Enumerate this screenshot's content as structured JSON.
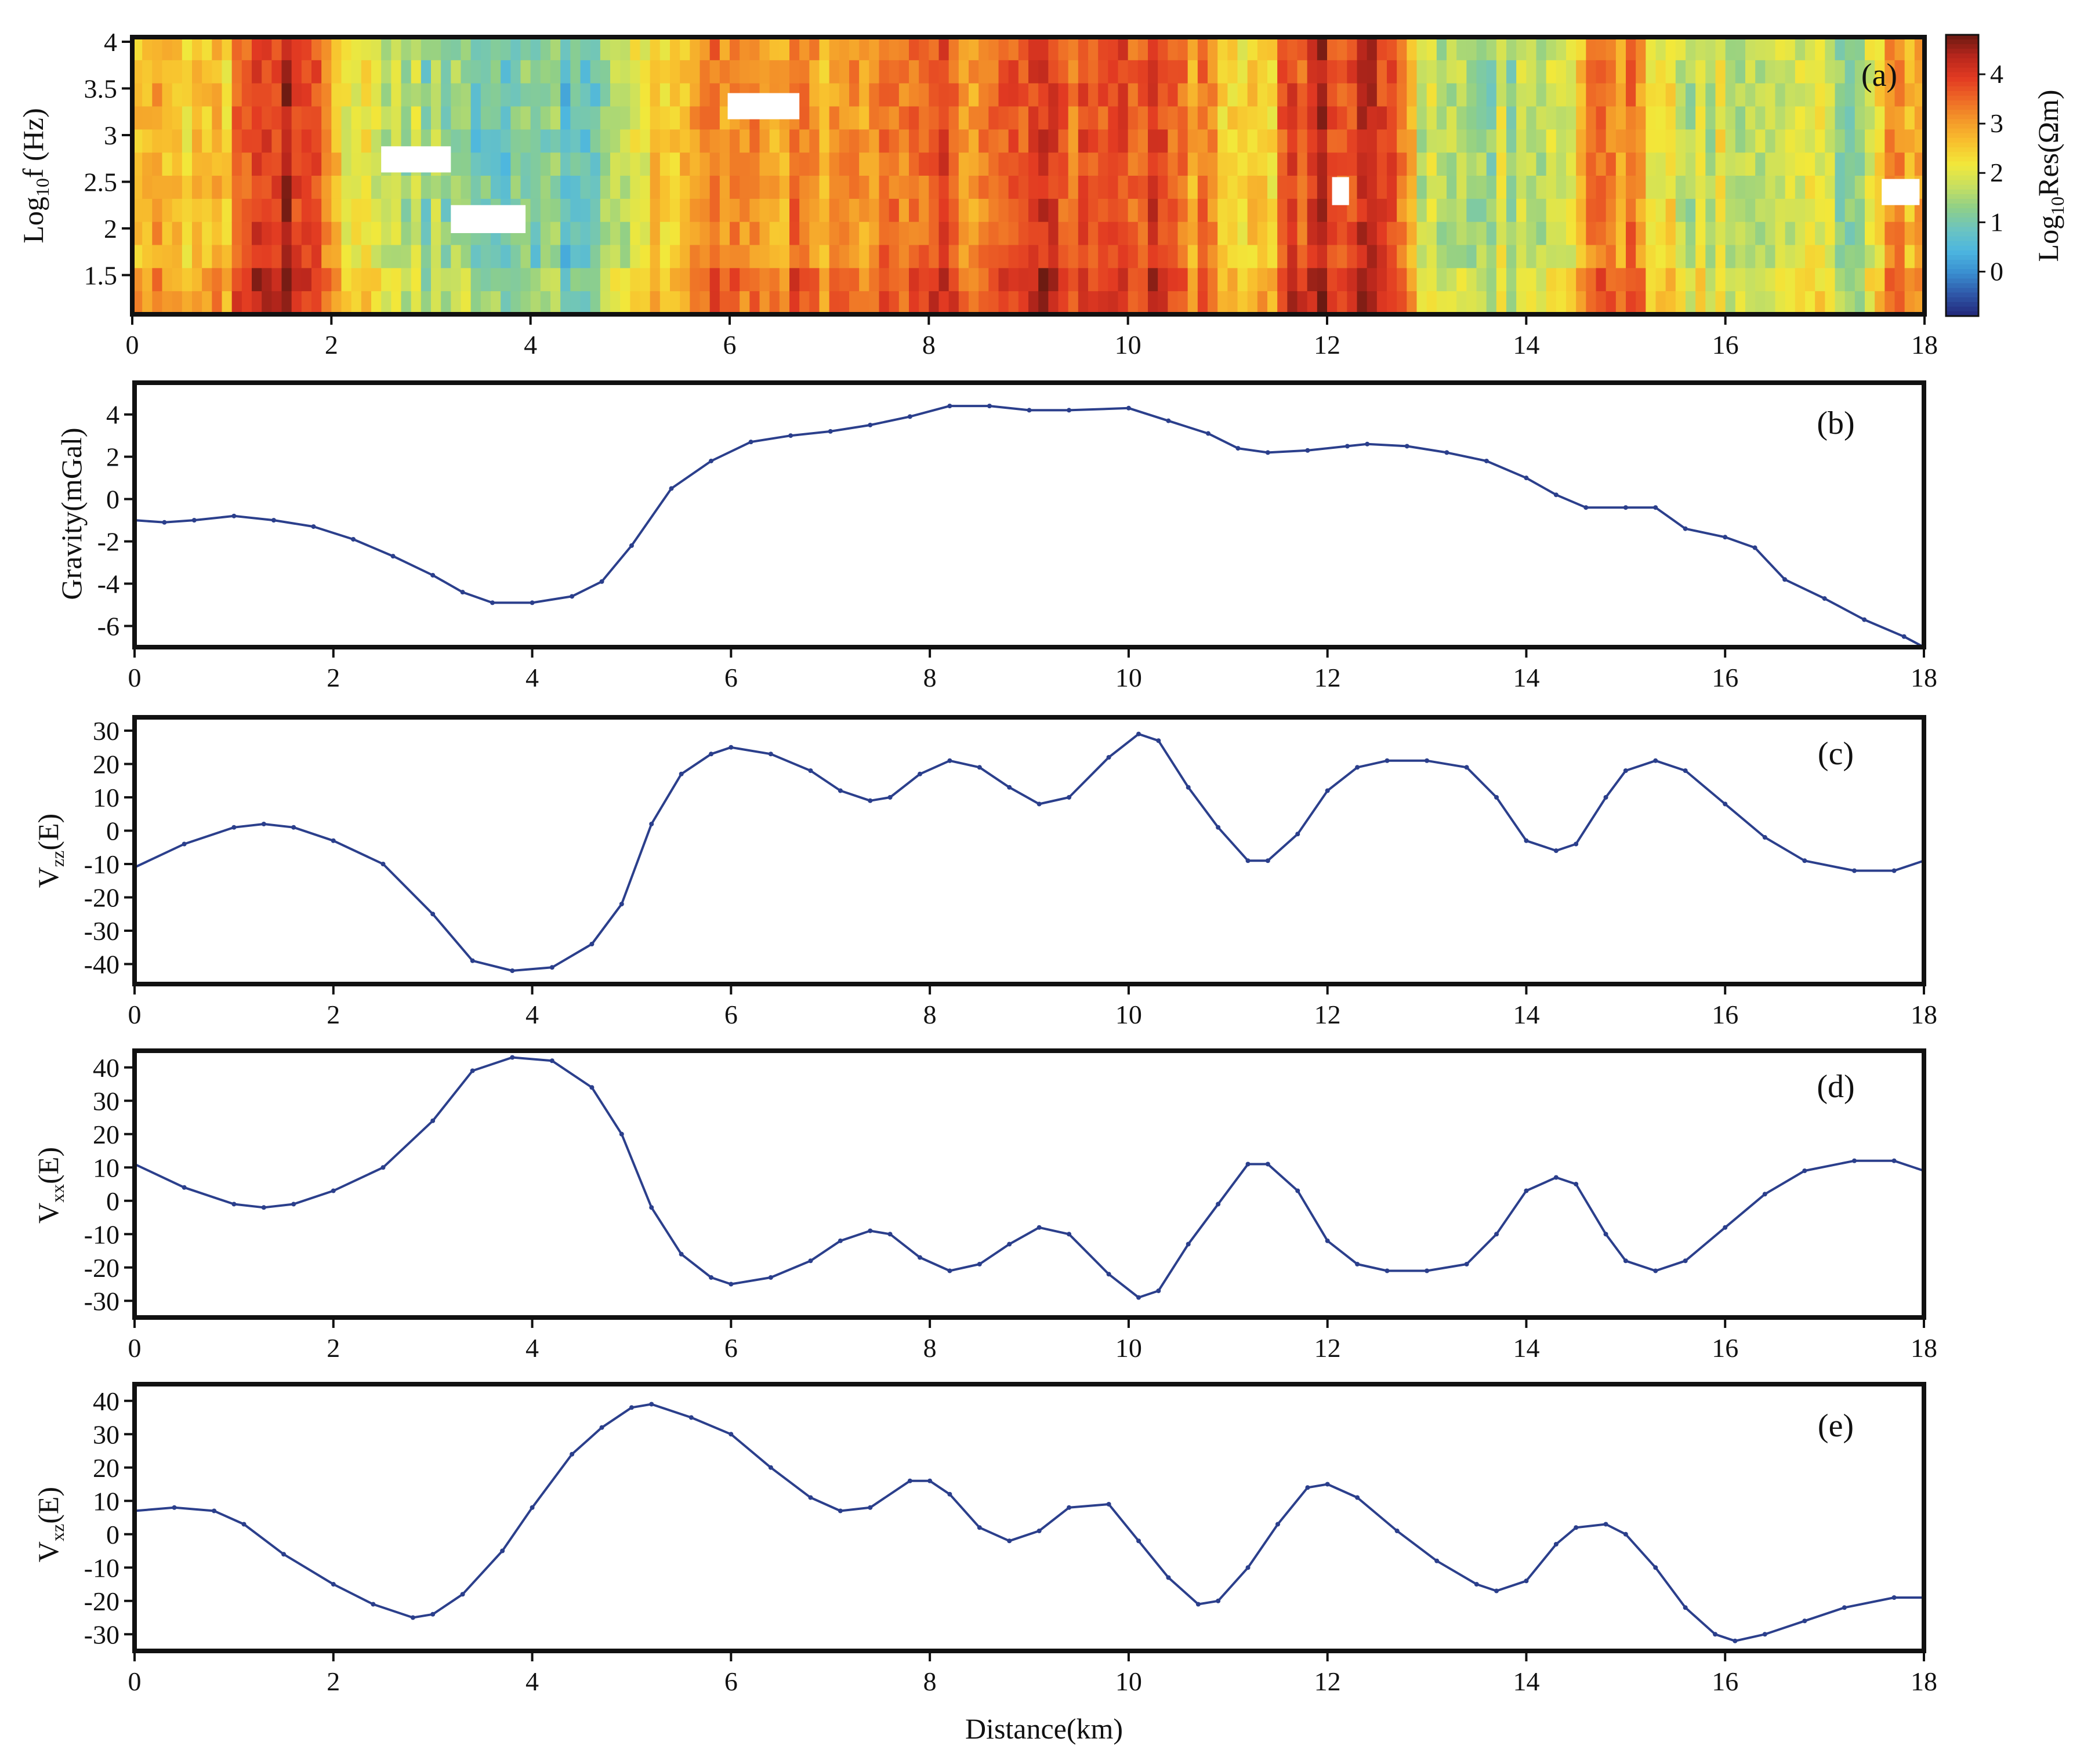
{
  "chart_data": [
    {
      "id": "a",
      "type": "heatmap",
      "panel_label": "(a)",
      "ylabel": "Log10f (Hz)",
      "colorbar_label": "Log10Res(Ωm)",
      "xlim": [
        0,
        18
      ],
      "ylim": [
        1.08,
        4.05
      ],
      "x_ticks": [
        0,
        2,
        4,
        6,
        8,
        10,
        12,
        14,
        16,
        18
      ],
      "y_ticks": [
        1.5,
        2,
        2.5,
        3,
        3.5,
        4
      ],
      "y_tick_labels": [
        "1.5",
        "2",
        "2.5",
        "3",
        "3.5",
        "4"
      ],
      "colorbar_ticks": [
        0,
        1,
        2,
        3,
        4
      ],
      "colorbar_range": [
        -0.9,
        4.8
      ],
      "colormap": [
        "#23287a",
        "#2f57a8",
        "#3a8fd0",
        "#4cb6e0",
        "#6cc4c0",
        "#8fcf88",
        "#c8e060",
        "#f2e83a",
        "#f8c22e",
        "#f49a2a",
        "#ee6a26",
        "#e23a22",
        "#b8261c",
        "#6a1a12"
      ],
      "profile_x": [
        0,
        0.3,
        0.6,
        0.9,
        1.2,
        1.5,
        1.8,
        2.1,
        2.4,
        2.7,
        3.0,
        3.3,
        3.6,
        3.9,
        4.2,
        4.5,
        4.8,
        5.1,
        5.4,
        5.7,
        6.0,
        6.3,
        6.6,
        6.9,
        7.2,
        7.5,
        7.8,
        8.1,
        8.4,
        8.7,
        9.0,
        9.3,
        9.6,
        9.9,
        10.2,
        10.5,
        10.8,
        11.1,
        11.4,
        11.7,
        12.0,
        12.3,
        12.6,
        12.9,
        13.2,
        13.5,
        13.8,
        14.1,
        14.4,
        14.7,
        15.0,
        15.3,
        15.6,
        15.9,
        16.2,
        16.5,
        16.8,
        17.1,
        17.4,
        17.7,
        18.0
      ],
      "profile_log_res": [
        3.1,
        2.8,
        2.3,
        2.6,
        3.9,
        4.3,
        3.8,
        2.4,
        2.0,
        1.8,
        1.4,
        1.1,
        0.9,
        1.0,
        1.2,
        0.5,
        1.6,
        2.4,
        2.2,
        3.0,
        3.2,
        3.0,
        3.3,
        2.9,
        3.4,
        3.3,
        3.1,
        3.8,
        3.2,
        3.4,
        3.7,
        3.8,
        3.5,
        3.6,
        3.9,
        3.3,
        2.9,
        2.6,
        2.3,
        3.9,
        4.0,
        3.8,
        3.7,
        2.1,
        1.9,
        1.7,
        1.6,
        1.8,
        1.9,
        3.1,
        3.3,
        2.0,
        1.9,
        1.8,
        1.7,
        1.9,
        1.7,
        1.6,
        1.5,
        3.0,
        2.9
      ],
      "masked_cells": [
        {
          "x0": 2.5,
          "x1": 3.2,
          "y0": 2.6,
          "y1": 2.88
        },
        {
          "x0": 3.2,
          "x1": 3.95,
          "y0": 1.95,
          "y1": 2.25
        },
        {
          "x0": 5.98,
          "x1": 6.7,
          "y0": 3.17,
          "y1": 3.45
        },
        {
          "x0": 12.05,
          "x1": 12.22,
          "y0": 2.25,
          "y1": 2.55
        },
        {
          "x0": 17.57,
          "x1": 17.95,
          "y0": 2.25,
          "y1": 2.53
        }
      ]
    },
    {
      "id": "b",
      "type": "line",
      "panel_label": "(b)",
      "ylabel": "Gravity(mGal)",
      "xlim": [
        0,
        18
      ],
      "ylim": [
        -7,
        5.5
      ],
      "x_ticks": [
        0,
        2,
        4,
        6,
        8,
        10,
        12,
        14,
        16,
        18
      ],
      "y_ticks": [
        -6,
        -4,
        -2,
        0,
        2,
        4
      ],
      "x": [
        0,
        0.3,
        0.6,
        1.0,
        1.4,
        1.8,
        2.2,
        2.6,
        3.0,
        3.3,
        3.6,
        4.0,
        4.4,
        4.7,
        5.0,
        5.4,
        5.8,
        6.2,
        6.6,
        7.0,
        7.4,
        7.8,
        8.2,
        8.6,
        9.0,
        9.4,
        10.0,
        10.4,
        10.8,
        11.1,
        11.4,
        11.8,
        12.2,
        12.4,
        12.8,
        13.2,
        13.6,
        14.0,
        14.3,
        14.6,
        15.0,
        15.3,
        15.6,
        16.0,
        16.3,
        16.6,
        17.0,
        17.4,
        17.8,
        18.0
      ],
      "y": [
        -1.0,
        -1.1,
        -1.0,
        -0.8,
        -1.0,
        -1.3,
        -1.9,
        -2.7,
        -3.6,
        -4.4,
        -4.9,
        -4.9,
        -4.6,
        -3.9,
        -2.2,
        0.5,
        1.8,
        2.7,
        3.0,
        3.2,
        3.5,
        3.9,
        4.4,
        4.4,
        4.2,
        4.2,
        4.3,
        3.7,
        3.1,
        2.4,
        2.2,
        2.3,
        2.5,
        2.6,
        2.5,
        2.2,
        1.8,
        1.0,
        0.2,
        -0.4,
        -0.4,
        -0.4,
        -1.4,
        -1.8,
        -2.3,
        -3.8,
        -4.7,
        -5.7,
        -6.5,
        -7.0
      ],
      "color": "#2b3f8c"
    },
    {
      "id": "c",
      "type": "line",
      "panel_label": "(c)",
      "ylabel": "Vzz(E)",
      "xlim": [
        0,
        18
      ],
      "ylim": [
        -46,
        34
      ],
      "x_ticks": [
        0,
        2,
        4,
        6,
        8,
        10,
        12,
        14,
        16,
        18
      ],
      "y_ticks": [
        -40,
        -30,
        -20,
        -10,
        0,
        10,
        20,
        30
      ],
      "x": [
        0,
        0.5,
        1.0,
        1.3,
        1.6,
        2.0,
        2.5,
        3.0,
        3.4,
        3.8,
        4.2,
        4.6,
        4.9,
        5.2,
        5.5,
        5.8,
        6.0,
        6.4,
        6.8,
        7.1,
        7.4,
        7.6,
        7.9,
        8.2,
        8.5,
        8.8,
        9.1,
        9.4,
        9.8,
        10.1,
        10.3,
        10.6,
        10.9,
        11.2,
        11.4,
        11.7,
        12.0,
        12.3,
        12.6,
        13.0,
        13.4,
        13.7,
        14.0,
        14.3,
        14.5,
        14.8,
        15.0,
        15.3,
        15.6,
        16.0,
        16.4,
        16.8,
        17.3,
        17.7,
        18.0
      ],
      "y": [
        -11,
        -4,
        1,
        2,
        1,
        -3,
        -10,
        -25,
        -39,
        -42,
        -41,
        -34,
        -22,
        2,
        17,
        23,
        25,
        23,
        18,
        12,
        9,
        10,
        17,
        21,
        19,
        13,
        8,
        10,
        22,
        29,
        27,
        13,
        1,
        -9,
        -9,
        -1,
        12,
        19,
        21,
        21,
        19,
        10,
        -3,
        -6,
        -4,
        10,
        18,
        21,
        18,
        8,
        -2,
        -9,
        -12,
        -12,
        -9
      ],
      "color": "#2b3f8c"
    },
    {
      "id": "d",
      "type": "line",
      "panel_label": "(d)",
      "ylabel": "Vxx(E)",
      "xlim": [
        0,
        18
      ],
      "ylim": [
        -35,
        45
      ],
      "x_ticks": [
        0,
        2,
        4,
        6,
        8,
        10,
        12,
        14,
        16,
        18
      ],
      "y_ticks": [
        -30,
        -20,
        -10,
        0,
        10,
        20,
        30,
        40
      ],
      "x": [
        0,
        0.5,
        1.0,
        1.3,
        1.6,
        2.0,
        2.5,
        3.0,
        3.4,
        3.8,
        4.2,
        4.6,
        4.9,
        5.2,
        5.5,
        5.8,
        6.0,
        6.4,
        6.8,
        7.1,
        7.4,
        7.6,
        7.9,
        8.2,
        8.5,
        8.8,
        9.1,
        9.4,
        9.8,
        10.1,
        10.3,
        10.6,
        10.9,
        11.2,
        11.4,
        11.7,
        12.0,
        12.3,
        12.6,
        13.0,
        13.4,
        13.7,
        14.0,
        14.3,
        14.5,
        14.8,
        15.0,
        15.3,
        15.6,
        16.0,
        16.4,
        16.8,
        17.3,
        17.7,
        18.0
      ],
      "y": [
        11,
        4,
        -1,
        -2,
        -1,
        3,
        10,
        24,
        39,
        43,
        42,
        34,
        20,
        -2,
        -16,
        -23,
        -25,
        -23,
        -18,
        -12,
        -9,
        -10,
        -17,
        -21,
        -19,
        -13,
        -8,
        -10,
        -22,
        -29,
        -27,
        -13,
        -1,
        11,
        11,
        3,
        -12,
        -19,
        -21,
        -21,
        -19,
        -10,
        3,
        7,
        5,
        -10,
        -18,
        -21,
        -18,
        -8,
        2,
        9,
        12,
        12,
        9
      ],
      "color": "#2b3f8c"
    },
    {
      "id": "e",
      "type": "line",
      "panel_label": "(e)",
      "ylabel": "Vxz(E)",
      "xlabel": "Distance(km)",
      "xlim": [
        0,
        18
      ],
      "ylim": [
        -35,
        45
      ],
      "x_ticks": [
        0,
        2,
        4,
        6,
        8,
        10,
        12,
        14,
        16,
        18
      ],
      "y_ticks": [
        -30,
        -20,
        -10,
        0,
        10,
        20,
        30,
        40
      ],
      "x": [
        0,
        0.4,
        0.8,
        1.1,
        1.5,
        2.0,
        2.4,
        2.8,
        3.0,
        3.3,
        3.7,
        4.0,
        4.4,
        4.7,
        5.0,
        5.2,
        5.6,
        6.0,
        6.4,
        6.8,
        7.1,
        7.4,
        7.8,
        8.0,
        8.2,
        8.5,
        8.8,
        9.1,
        9.4,
        9.8,
        10.1,
        10.4,
        10.7,
        10.9,
        11.2,
        11.5,
        11.8,
        12.0,
        12.3,
        12.7,
        13.1,
        13.5,
        13.7,
        14.0,
        14.3,
        14.5,
        14.8,
        15.0,
        15.3,
        15.6,
        15.9,
        16.1,
        16.4,
        16.8,
        17.2,
        17.7,
        18.0
      ],
      "y": [
        7,
        8,
        7,
        3,
        -6,
        -15,
        -21,
        -25,
        -24,
        -18,
        -5,
        8,
        24,
        32,
        38,
        39,
        35,
        30,
        20,
        11,
        7,
        8,
        16,
        16,
        12,
        2,
        -2,
        1,
        8,
        9,
        -2,
        -13,
        -21,
        -20,
        -10,
        3,
        14,
        15,
        11,
        1,
        -8,
        -15,
        -17,
        -14,
        -3,
        2,
        3,
        0,
        -10,
        -22,
        -30,
        -32,
        -30,
        -26,
        -22,
        -19,
        -19
      ],
      "color": "#2b3f8c"
    }
  ]
}
